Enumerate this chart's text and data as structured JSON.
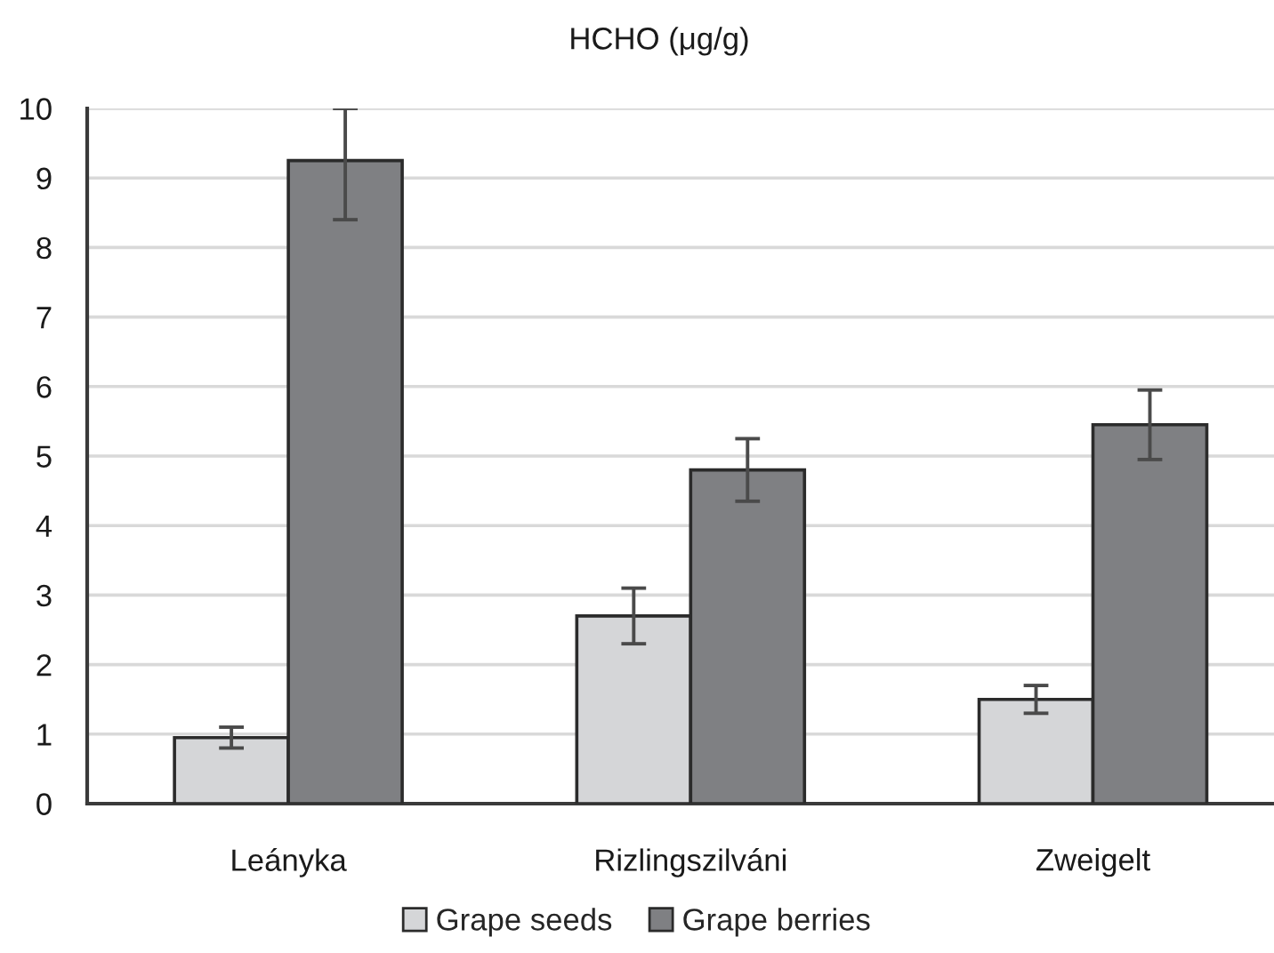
{
  "chart_data": {
    "type": "bar",
    "title": "HCHO (μg/g)",
    "categories": [
      "Leányka",
      "Rizlingszilváni",
      "Zweigelt"
    ],
    "series": [
      {
        "name": "Grape seeds",
        "color": "#d5d6d8",
        "values": [
          0.95,
          2.7,
          1.5
        ],
        "errors": [
          0.15,
          0.4,
          0.2
        ]
      },
      {
        "name": "Grape berries",
        "color": "#7f8083",
        "values": [
          9.25,
          4.8,
          5.45
        ],
        "errors": [
          [
            8.4,
            10
          ],
          0.45,
          0.5
        ]
      }
    ],
    "ylim": [
      0,
      10
    ],
    "yticks": [
      0,
      1,
      2,
      3,
      4,
      5,
      6,
      7,
      8,
      9,
      10
    ],
    "grid": "y",
    "legend": "bottom"
  }
}
